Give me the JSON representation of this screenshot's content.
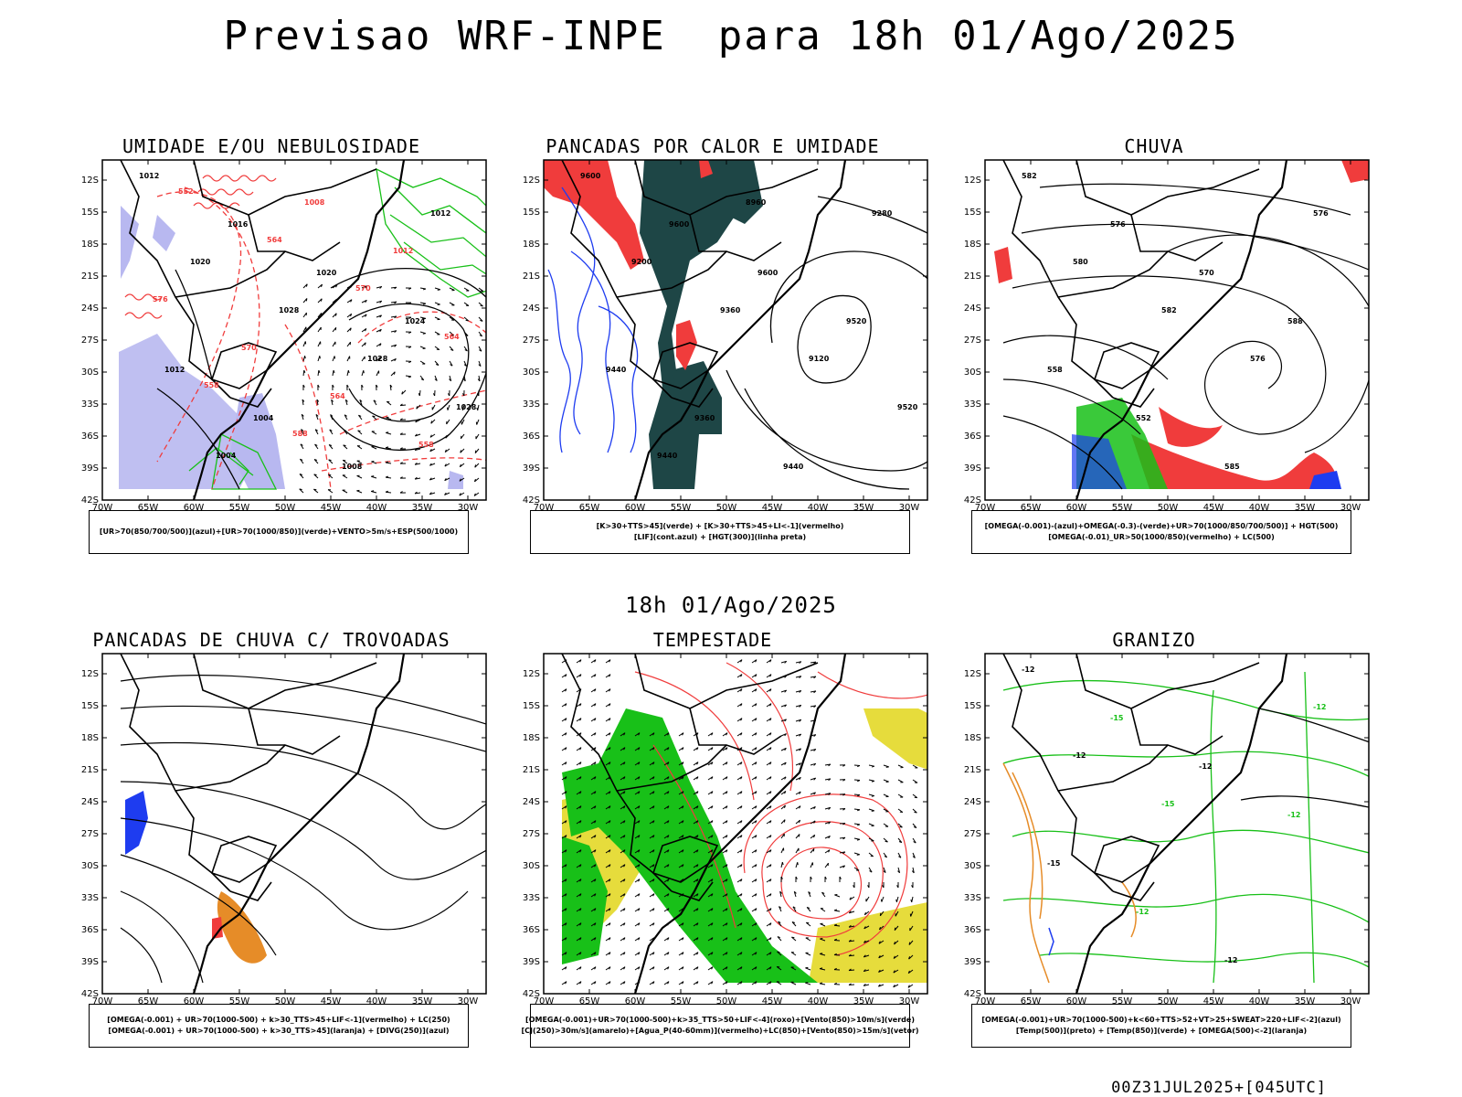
{
  "header": {
    "title": "Previsao WRF-INPE  para 18h 01/Ago/2025"
  },
  "mid_title": "18h 01/Ago/2025",
  "footer": "00Z31JUL2025+[045UTC]",
  "axes": {
    "lat_labels": [
      "12S",
      "15S",
      "18S",
      "21S",
      "24S",
      "27S",
      "30S",
      "33S",
      "36S",
      "39S",
      "42S"
    ],
    "lon_labels": [
      "70W",
      "65W",
      "60W",
      "55W",
      "50W",
      "45W",
      "40W",
      "35W",
      "30W"
    ]
  },
  "panels": [
    {
      "title": "UMIDADE E/OU NEBULOSIDADE",
      "legend": [
        "[UR>70(850/700/500)](azul)+[UR>70(1000/850)](verde)+VENTO>5m/s+ESP(500/1000)"
      ],
      "labels": [
        "1012",
        "1016",
        "1020",
        "1024",
        "1012",
        "1004",
        "1008",
        "1012",
        "1020",
        "1028",
        "1028",
        "1028",
        "1004",
        "1008",
        "1012",
        "576",
        "570",
        "564",
        "558",
        "552",
        "564",
        "570",
        "564",
        "558",
        "588"
      ]
    },
    {
      "title": "PANCADAS POR CALOR E UMIDADE",
      "legend": [
        "[K>30+TTS>45](verde) + [K>30+TTS>45+LI<-1](vermelho)",
        "[LIF](cont.azul) + [HGT(300)](linha preta)"
      ],
      "labels": [
        "9600",
        "9600",
        "9600",
        "9520",
        "9440",
        "9360",
        "9440",
        "9280",
        "9200",
        "9360",
        "9120",
        "9520",
        "9440",
        "8960"
      ]
    },
    {
      "title": "CHUVA",
      "legend": [
        "[OMEGA(-0.001)-(azul)+OMEGA(-0.3)-(verde)+UR>70(1000/850/700/500)] + HGT(500)",
        "[OMEGA(-0.01)_UR>50(1000/850)(vermelho) + LC(500)"
      ],
      "labels": [
        "582",
        "576",
        "570",
        "588",
        "558",
        "552",
        "585",
        "576",
        "580",
        "582",
        "576"
      ]
    },
    {
      "title": "PANCADAS DE CHUVA C/ TROVOADAS",
      "legend": [
        "[OMEGA(-0.001) + UR>70(1000-500) + k>30_TTS>45+LIF<-1](vermelho) + LC(250)",
        "[OMEGA(-0.001) + UR>70(1000-500) + k>30_TTS>45](laranja) + [DIVG(250)](azul)"
      ],
      "labels": []
    },
    {
      "title": "TEMPESTADE",
      "legend": [
        "[OMEGA(-0.001)+UR>70(1000-500)+k>35_TTS>50+LIF<-4](roxo)+[Vento(850)>10m/s](verde)",
        "[CJ(250)>30m/s](amarelo)+[Agua_P(40-60mm)](vermelho)+LC(850)+[Vento(850)>15m/s](vetor)"
      ],
      "labels": []
    },
    {
      "title": "GRANIZO",
      "legend": [
        "[OMEGA(-0.001)+UR>70(1000-500)+k<60+TTS>52+VT>25+SWEAT>220+LIF<-2](azul)",
        "[Temp(500)](preto) + [Temp(850)](verde) + [OMEGA(500)<-2](laranja)"
      ],
      "labels": [
        "-12",
        "-15",
        "-12",
        "-12",
        "-15",
        "-12",
        "-12",
        "-12",
        "-12",
        "-15"
      ]
    }
  ],
  "colors": {
    "red": "#f03c3c",
    "green": "#18c018",
    "blue": "#1e3cf0",
    "lavender": "#b8b8f0",
    "darkteal": "#1e4646",
    "yellow": "#e6dc3c",
    "orange": "#e68c28",
    "black": "#000000"
  }
}
